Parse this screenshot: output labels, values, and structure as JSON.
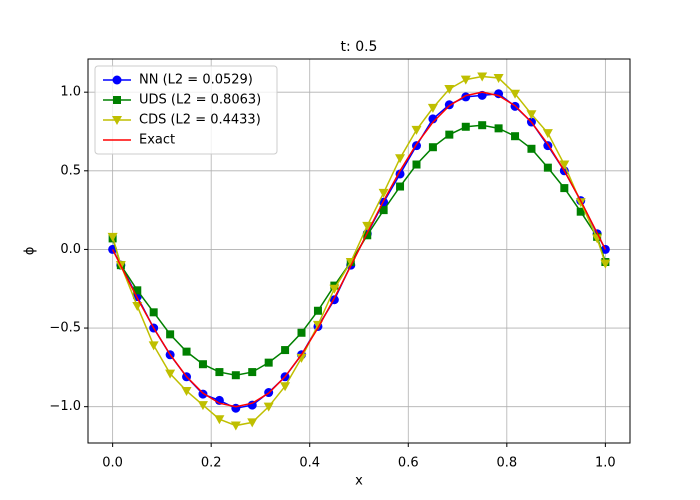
{
  "chart_data": {
    "type": "line",
    "title": "t: 0.5",
    "x_label": "x",
    "y_label": "ϕ",
    "x": [
      0,
      0.0167,
      0.05,
      0.0833,
      0.1167,
      0.15,
      0.1833,
      0.2167,
      0.25,
      0.2833,
      0.3167,
      0.35,
      0.3833,
      0.4167,
      0.45,
      0.4833,
      0.5167,
      0.55,
      0.5833,
      0.6167,
      0.65,
      0.6833,
      0.7167,
      0.75,
      0.7833,
      0.8167,
      0.85,
      0.8833,
      0.9167,
      0.95,
      0.9833,
      1.0
    ],
    "series": [
      {
        "name": "NN (L2 = 0.0529)",
        "color": "#0000ff",
        "marker": "circle",
        "values": [
          0,
          -0.1,
          -0.3,
          -0.5,
          -0.67,
          -0.81,
          -0.92,
          -0.96,
          -1.01,
          -0.99,
          -0.91,
          -0.81,
          -0.67,
          -0.49,
          -0.32,
          -0.1,
          0.1,
          0.3,
          0.48,
          0.66,
          0.83,
          0.92,
          0.97,
          0.98,
          0.99,
          0.91,
          0.81,
          0.66,
          0.5,
          0.31,
          0.1,
          0
        ]
      },
      {
        "name": "UDS (L2 = 0.8063)",
        "color": "#008000",
        "marker": "square",
        "values": [
          0.07,
          -0.1,
          -0.26,
          -0.4,
          -0.54,
          -0.65,
          -0.73,
          -0.78,
          -0.8,
          -0.78,
          -0.72,
          -0.64,
          -0.53,
          -0.39,
          -0.23,
          -0.08,
          0.09,
          0.25,
          0.4,
          0.54,
          0.65,
          0.73,
          0.78,
          0.79,
          0.77,
          0.72,
          0.64,
          0.52,
          0.39,
          0.24,
          0.08,
          -0.08
        ]
      },
      {
        "name": "CDS (L2 = 0.4433)",
        "color": "#bfbf00",
        "marker": "triangle-down",
        "values": [
          0.08,
          -0.1,
          -0.36,
          -0.61,
          -0.79,
          -0.9,
          -0.99,
          -1.08,
          -1.12,
          -1.1,
          -1.0,
          -0.87,
          -0.69,
          -0.48,
          -0.25,
          -0.08,
          0.15,
          0.36,
          0.58,
          0.76,
          0.9,
          1.02,
          1.08,
          1.1,
          1.09,
          0.99,
          0.86,
          0.74,
          0.54,
          0.3,
          0.07,
          -0.09
        ]
      },
      {
        "name": "Exact",
        "color": "#ff0000",
        "marker": "none",
        "values": [
          0,
          -0.105,
          -0.309,
          -0.5,
          -0.669,
          -0.809,
          -0.914,
          -0.978,
          -1,
          -0.978,
          -0.914,
          -0.809,
          -0.669,
          -0.5,
          -0.309,
          -0.105,
          0.105,
          0.309,
          0.5,
          0.669,
          0.809,
          0.914,
          0.978,
          1,
          0.978,
          0.914,
          0.809,
          0.669,
          0.5,
          0.309,
          0.105,
          0
        ]
      }
    ],
    "xlim": [
      -0.05,
      1.05
    ],
    "ylim": [
      -1.231,
      1.211
    ],
    "xticks": [
      {
        "value": 0,
        "label": "0.0"
      },
      {
        "value": 0.2,
        "label": "0.2"
      },
      {
        "value": 0.4,
        "label": "0.4"
      },
      {
        "value": 0.6,
        "label": "0.6"
      },
      {
        "value": 0.8,
        "label": "0.8"
      },
      {
        "value": 1,
        "label": "1.0"
      }
    ],
    "yticks": [
      {
        "value": -1,
        "label": "−1.0"
      },
      {
        "value": -0.5,
        "label": "−0.5"
      },
      {
        "value": 0,
        "label": "0.0"
      },
      {
        "value": 0.5,
        "label": "0.5"
      },
      {
        "value": 1,
        "label": "1.0"
      }
    ],
    "grid": true,
    "legend": "upper left"
  }
}
